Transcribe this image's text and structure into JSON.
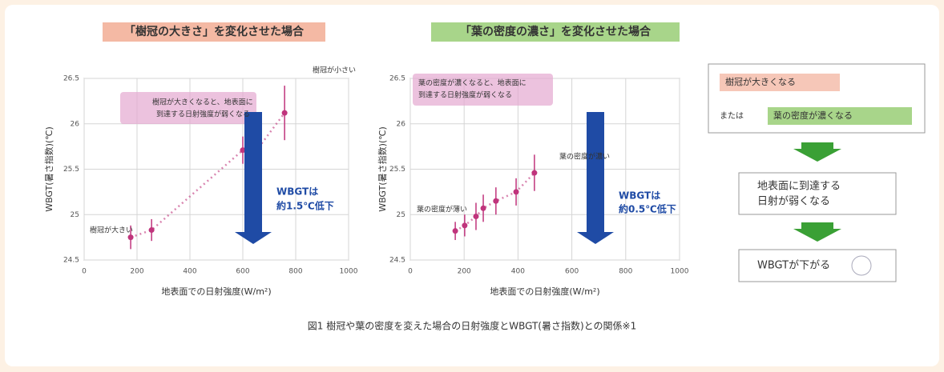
{
  "chart_data": [
    {
      "type": "scatter",
      "title": "「樹冠の大きさ」を変化させた場合",
      "x_label": "地表面での日射強度(W/m²)",
      "y_label": "WBGT(暑さ指数)(℃)",
      "x": [
        176,
        255,
        600,
        627,
        655,
        758
      ],
      "values": [
        24.75,
        24.83,
        25.71,
        25.62,
        25.72,
        26.12
      ],
      "errors": [
        0.13,
        0.12,
        0.15,
        0.15,
        0.15,
        0.3
      ],
      "color": "#c0347c",
      "xlim": [
        0,
        1000
      ],
      "xticks": [
        0,
        200,
        400,
        600,
        800,
        1000
      ],
      "ylim": [
        24.5,
        26.5
      ],
      "yticks": [
        24.5,
        25,
        25.5,
        26,
        26.5
      ],
      "grid": true,
      "annotations": [
        "樹冠が大きくなると、地表面に",
        "到達する日射強度が弱くなる",
        "樹冠が大きい",
        "樹冠が小さい",
        "WBGTは",
        "約1.5℃低下"
      ]
    },
    {
      "type": "scatter",
      "title": "「葉の密度の濃さ」を変化させた場合",
      "x_label": "地表面での日射強度(W/m²)",
      "y_label": "WBGT(暑さ指数)(℃)",
      "x": [
        167,
        202,
        244,
        271,
        318,
        393,
        461
      ],
      "values": [
        24.82,
        24.88,
        24.98,
        25.07,
        25.15,
        25.25,
        25.46
      ],
      "errors": [
        0.1,
        0.12,
        0.15,
        0.15,
        0.15,
        0.15,
        0.2
      ],
      "color": "#c0347c",
      "xlim": [
        0,
        1000
      ],
      "xticks": [
        0,
        200,
        400,
        600,
        800,
        1000
      ],
      "ylim": [
        24.5,
        26.5
      ],
      "yticks": [
        24.5,
        25,
        25.5,
        26,
        26.5
      ],
      "grid": true,
      "annotations": [
        "葉の密度が濃くなると、地表面に",
        "到達する日射強度が弱くなる",
        "葉の密度が薄い",
        "葉の密度が濃い",
        "WBGTは",
        "約0.5℃低下"
      ]
    }
  ],
  "flow": {
    "cause_1": "樹冠が大きくなる",
    "or": "または",
    "cause_2": "葉の密度が濃くなる",
    "step_2": [
      "地表面に到達する",
      "日射が弱くなる"
    ],
    "step_3": "WBGTが下がる"
  },
  "caption": "図1 樹冠や葉の密度を変えた場合の日射強度とWBGT(暑さ指数)との関係※1"
}
